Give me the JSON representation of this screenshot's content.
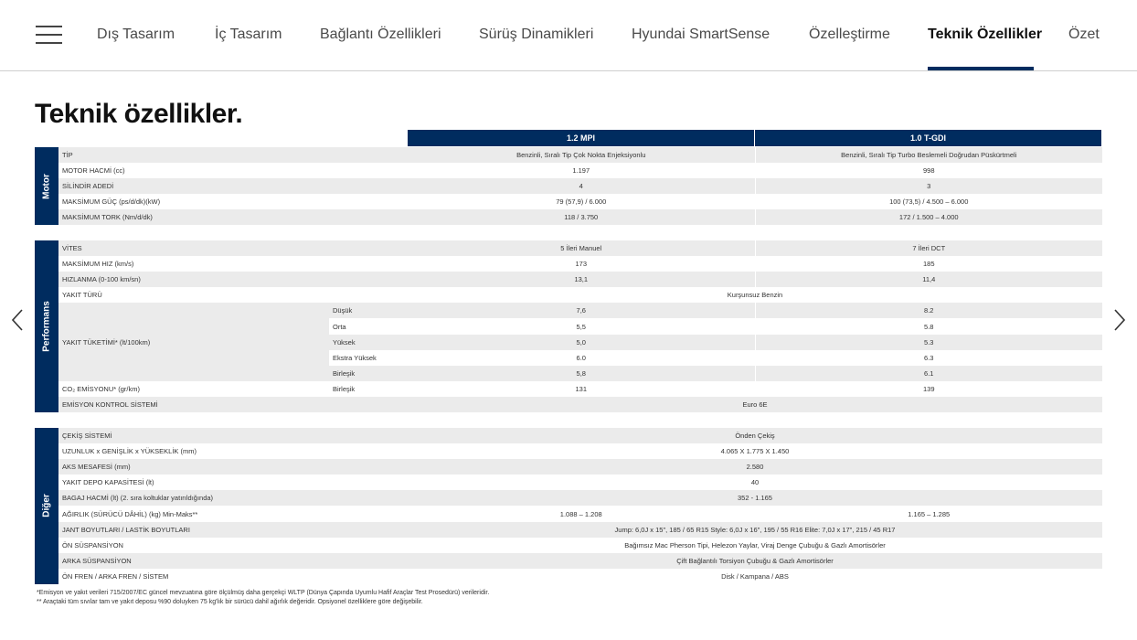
{
  "nav": {
    "items": [
      "Dış Tasarım",
      "İç Tasarım",
      "Bağlantı Özellikleri",
      "Sürüş Dinamikleri",
      "Hyundai SmartSense",
      "Özelleştirme",
      "Teknik Özellikler",
      "Özet"
    ],
    "active": 6
  },
  "title": "Teknik özellikler.",
  "columns": [
    "1.2 MPI",
    "1.0 T-GDI"
  ],
  "colors": {
    "brand": "#002c5f",
    "row_alt": "#ebebeb"
  },
  "sections": [
    {
      "name": "Motor",
      "rows": [
        {
          "label": "TİP",
          "v1": "Benzinli, Sıralı Tip Çok Nokta Enjeksiyonlu",
          "v2": "Benzinli, Sıralı Tip Turbo Beslemeli Doğrudan Püskürtmeli"
        },
        {
          "label": "MOTOR HACMİ (cc)",
          "v1": "1.197",
          "v2": "998"
        },
        {
          "label": "SİLİNDİR ADEDİ",
          "v1": "4",
          "v2": "3"
        },
        {
          "label": "MAKSİMUM GÜÇ (ps/d/dk)(kW)",
          "v1": "79 (57,9) / 6.000",
          "v2": "100 (73,5) / 4.500 – 6.000"
        },
        {
          "label": "MAKSİMUM TORK (Nm/d/dk)",
          "v1": "118 / 3.750",
          "v2": "172 / 1.500 – 4.000"
        }
      ]
    },
    {
      "name": "Performans",
      "rows": [
        {
          "label": "VİTES",
          "v1": "5 İleri Manuel",
          "v2": "7 İleri DCT"
        },
        {
          "label": "MAKSİMUM HIZ (km/s)",
          "v1": "173",
          "v2": "185"
        },
        {
          "label": "HIZLANMA (0-100 km/sn)",
          "v1": "13,1",
          "v2": "11,4"
        },
        {
          "label": "YAKIT TÜRÜ",
          "merged": "Kurşunsuz Benzin"
        },
        {
          "label": "YAKIT TÜKETİMİ* (lt/100km)",
          "group": [
            {
              "sub": "Düşük",
              "v1": "7,6",
              "v2": "8.2"
            },
            {
              "sub": "Orta",
              "v1": "5,5",
              "v2": "5.8"
            },
            {
              "sub": "Yüksek",
              "v1": "5,0",
              "v2": "5.3"
            },
            {
              "sub": "Ekstra Yüksek",
              "v1": "6.0",
              "v2": "6.3"
            },
            {
              "sub": "Birleşik",
              "v1": "5,8",
              "v2": "6.1"
            }
          ]
        },
        {
          "label": "CO₂ EMİSYONU* (gr/km)",
          "sub": "Birleşik",
          "v1": "131",
          "v2": "139"
        },
        {
          "label": "EMİSYON KONTROL SİSTEMİ",
          "merged": "Euro 6E"
        }
      ]
    },
    {
      "name": "Diğer",
      "rows": [
        {
          "label": "ÇEKİŞ SİSTEMİ",
          "merged": "Önden Çekiş"
        },
        {
          "label": "UZUNLUK x GENİŞLİK x YÜKSEKLİK (mm)",
          "merged": "4.065 X 1.775 X 1.450"
        },
        {
          "label": "AKS MESAFESİ (mm)",
          "merged": "2.580"
        },
        {
          "label": "YAKIT DEPO KAPASİTESİ (lt)",
          "merged": "40"
        },
        {
          "label": "BAGAJ HACMİ (lt) (2. sıra koltuklar yatırıldığında)",
          "merged": "352 - 1.165"
        },
        {
          "label": "AĞIRLIK (SÜRÜCÜ DÂHİL) (kg) Min-Maks**",
          "v1": "1.088 – 1.208",
          "v2": "1.165 – 1.285"
        },
        {
          "label": "JANT BOYUTLARI / LASTİK BOYUTLARI",
          "merged": "Jump: 6,0J x 15\", 185 / 65 R15   Style: 6,0J x 16\", 195 / 55 R16   Elite: 7,0J x 17\", 215 / 45 R17"
        },
        {
          "label": "ÖN SÜSPANSİYON",
          "merged": "Bağımsız Mac Pherson Tipi, Helezon Yaylar, Viraj Denge Çubuğu & Gazlı Amortisörler"
        },
        {
          "label": "ARKA SÜSPANSİYON",
          "merged": "Çift Bağlantılı Torsiyon Çubuğu & Gazlı Amortisörler"
        },
        {
          "label": "ÖN FREN / ARKA FREN / SİSTEM",
          "merged": "Disk / Kampana  / ABS"
        }
      ]
    }
  ],
  "footnotes": [
    "*Emisyon ve yakıt verileri 715/2007/EC güncel mevzuatına göre ölçülmüş daha gerçekçi WLTP (Dünya Çapında Uyumlu Hafif Araçlar Test Prosedürü) verileridir.",
    "** Araçtaki tüm sıvılar tam ve yakıt deposu %90 doluyken 75 kg'lık bir sürücü dahil ağırlık değeridir. Opsiyonel özelliklere göre değişebilir."
  ],
  "icons": {
    "menu": "hamburger-icon",
    "prev": "chevron-left-icon",
    "next": "chevron-right-icon"
  }
}
